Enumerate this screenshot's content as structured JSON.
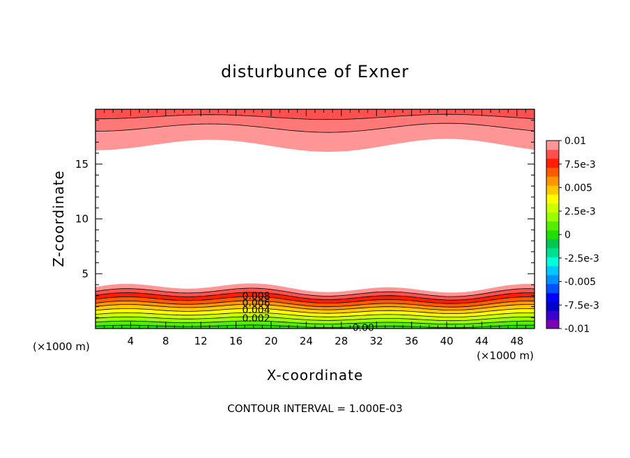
{
  "chart_data": {
    "type": "heatmap",
    "title": "disturbunce of Exner",
    "xlabel": "X-coordinate",
    "ylabel": "Z-coordinate",
    "x_unit_label_left": "(×1000 m)",
    "x_unit_label_right": "(×1000 m)",
    "xlim": [
      0,
      50
    ],
    "ylim": [
      0,
      20
    ],
    "xticks": [
      4,
      8,
      12,
      16,
      20,
      24,
      28,
      32,
      36,
      40,
      44,
      48
    ],
    "yticks": [
      5,
      10,
      15
    ],
    "footer": "CONTOUR INTERVAL = 1.000E-03",
    "colorbar": {
      "tick_labels": [
        "0.01",
        "7.5e-3",
        "0.005",
        "2.5e-3",
        "0",
        "-2.5e-3",
        "-0.005",
        "-7.5e-3",
        "-0.01"
      ],
      "levels": [
        -0.01,
        -0.009,
        -0.008,
        -0.007,
        -0.006,
        -0.005,
        -0.004,
        -0.003,
        -0.002,
        -0.001,
        0,
        0.001,
        0.002,
        0.003,
        0.004,
        0.005,
        0.006,
        0.007,
        0.008,
        0.009,
        0.01
      ],
      "colors": [
        "#7a00b4",
        "#3a00cc",
        "#0000c8",
        "#0000ff",
        "#0050ff",
        "#0090ff",
        "#00c8ff",
        "#00ffd8",
        "#00e090",
        "#00c850",
        "#22dd00",
        "#55ee00",
        "#99ff00",
        "#ccff00",
        "#ffff00",
        "#ffc800",
        "#ff9600",
        "#ff5a00",
        "#ff1e00",
        "#ff5050",
        "#ff9696"
      ]
    },
    "bottom_bands": [
      {
        "z_top": 3.7,
        "color": "#ff9696"
      },
      {
        "z_top": 3.3,
        "color": "#ff5050"
      },
      {
        "z_top": 2.95,
        "color": "#ff1e00"
      },
      {
        "z_top": 2.6,
        "color": "#ff5a00"
      },
      {
        "z_top": 2.25,
        "color": "#ff9600"
      },
      {
        "z_top": 1.95,
        "color": "#ffc800"
      },
      {
        "z_top": 1.6,
        "color": "#ffff00"
      },
      {
        "z_top": 1.25,
        "color": "#ccff00"
      },
      {
        "z_top": 0.9,
        "color": "#99ff00"
      },
      {
        "z_top": 0.55,
        "color": "#55ee00"
      },
      {
        "z_top": 0.2,
        "color": "#22dd00"
      }
    ],
    "top_bands": [
      {
        "z_bottom": 16.7,
        "color": "#ff9696"
      },
      {
        "z_bottom": 18.3,
        "color": "#ff7878"
      },
      {
        "z_bottom": 19.3,
        "color": "#ff5050"
      }
    ],
    "contour_labels": [
      {
        "text": "0.008",
        "x": 18.3,
        "z": 3.0
      },
      {
        "text": "0.006",
        "x": 18.3,
        "z": 2.35
      },
      {
        "text": "0.004",
        "x": 18.3,
        "z": 1.7
      },
      {
        "text": "0.002",
        "x": 18.3,
        "z": 0.95
      },
      {
        "text": "0.00",
        "x": 30.5,
        "z": 0.1
      }
    ]
  }
}
